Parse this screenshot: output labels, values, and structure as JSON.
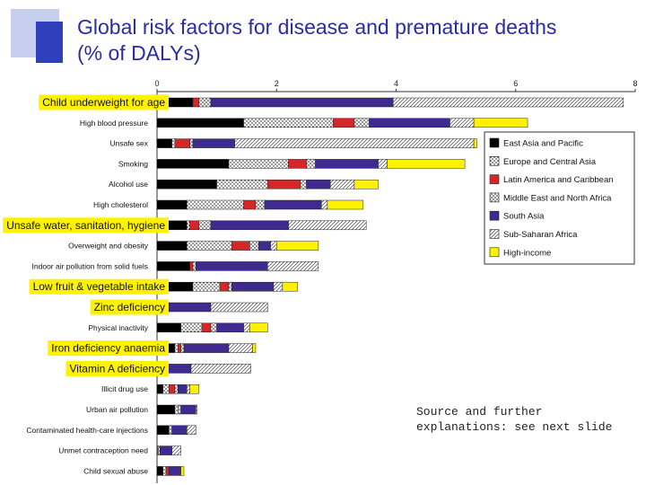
{
  "slide": {
    "title_line1": "Global risk factors for disease and premature deaths",
    "title_line2": "(% of DALYs)",
    "source_note": "Source and further explanations: see next slide"
  },
  "chart_data": {
    "type": "bar",
    "stacked": true,
    "orientation": "horizontal",
    "title": "Global risk factors for disease and premature deaths (% of DALYs)",
    "xlabel": "",
    "ylabel": "",
    "xlim": [
      0,
      8
    ],
    "x_ticks": [
      0,
      2,
      4,
      6,
      8
    ],
    "legend_position": "right",
    "categories": [
      "Child underweight for age",
      "High blood pressure",
      "Unsafe sex",
      "Smoking",
      "Alcohol use",
      "High cholesterol",
      "Unsafe water, sanitation, hygiene",
      "Overweight and obesity",
      "Indoor air pollution from solid fuels",
      "Low fruit & vegetable intake",
      "Zinc deficiency",
      "Physical inactivity",
      "Iron deficiency anaemia",
      "Vitamin A deficiency",
      "Illicit drug use",
      "Urban air pollution",
      "Contaminated health-care injections",
      "Unmet contraception need",
      "Child sexual abuse"
    ],
    "highlighted_categories": [
      "Child underweight for age",
      "Unsafe water, sanitation, hygiene",
      "Low fruit & vegetable intake",
      "Zinc deficiency",
      "Iron deficiency anaemia",
      "Vitamin A deficiency"
    ],
    "series": [
      {
        "name": "East Asia and Pacific",
        "color": "#000000",
        "pattern": "solid",
        "values": [
          0.6,
          1.45,
          0.25,
          1.2,
          1.0,
          0.5,
          0.5,
          0.5,
          0.55,
          0.6,
          0.15,
          0.4,
          0.3,
          0.1,
          0.1,
          0.3,
          0.2,
          0.0,
          0.1
        ]
      },
      {
        "name": "Europe and Central Asia",
        "color": "#ffffff",
        "pattern": "dots",
        "values": [
          0.0,
          1.5,
          0.05,
          1.0,
          0.85,
          0.95,
          0.05,
          0.75,
          0.0,
          0.45,
          0.0,
          0.35,
          0.05,
          0.0,
          0.1,
          0.05,
          0.0,
          0.0,
          0.05
        ]
      },
      {
        "name": "Latin America and Caribbean",
        "color": "#d62728",
        "pattern": "solid",
        "values": [
          0.1,
          0.35,
          0.25,
          0.3,
          0.55,
          0.2,
          0.15,
          0.3,
          0.05,
          0.15,
          0.0,
          0.15,
          0.05,
          0.0,
          0.1,
          0.0,
          0.0,
          0.02,
          0.05
        ]
      },
      {
        "name": "Middle East and North Africa",
        "color": "#ffffff",
        "pattern": "crosshatch",
        "values": [
          0.2,
          0.25,
          0.05,
          0.15,
          0.1,
          0.15,
          0.2,
          0.15,
          0.05,
          0.05,
          0.05,
          0.1,
          0.05,
          0.02,
          0.05,
          0.05,
          0.05,
          0.03,
          0.0
        ]
      },
      {
        "name": "South Asia",
        "color": "#3f2a8f",
        "pattern": "solid",
        "values": [
          3.05,
          1.35,
          0.7,
          1.05,
          0.4,
          0.95,
          1.3,
          0.2,
          1.2,
          0.7,
          0.7,
          0.45,
          0.75,
          0.45,
          0.15,
          0.25,
          0.25,
          0.2,
          0.2
        ]
      },
      {
        "name": "Sub-Saharan Africa",
        "color": "#ffffff",
        "pattern": "diagonal",
        "values": [
          3.85,
          0.4,
          4.0,
          0.15,
          0.4,
          0.1,
          1.3,
          0.1,
          0.85,
          0.15,
          0.95,
          0.1,
          0.4,
          1.0,
          0.05,
          0.02,
          0.15,
          0.15,
          0.0
        ]
      },
      {
        "name": "High-income",
        "color": "#fff200",
        "pattern": "solid",
        "values": [
          0.0,
          0.9,
          0.05,
          1.3,
          0.4,
          0.6,
          0.0,
          0.7,
          0.0,
          0.25,
          0.0,
          0.3,
          0.05,
          0.0,
          0.15,
          0.0,
          0.0,
          0.0,
          0.05
        ]
      }
    ]
  }
}
